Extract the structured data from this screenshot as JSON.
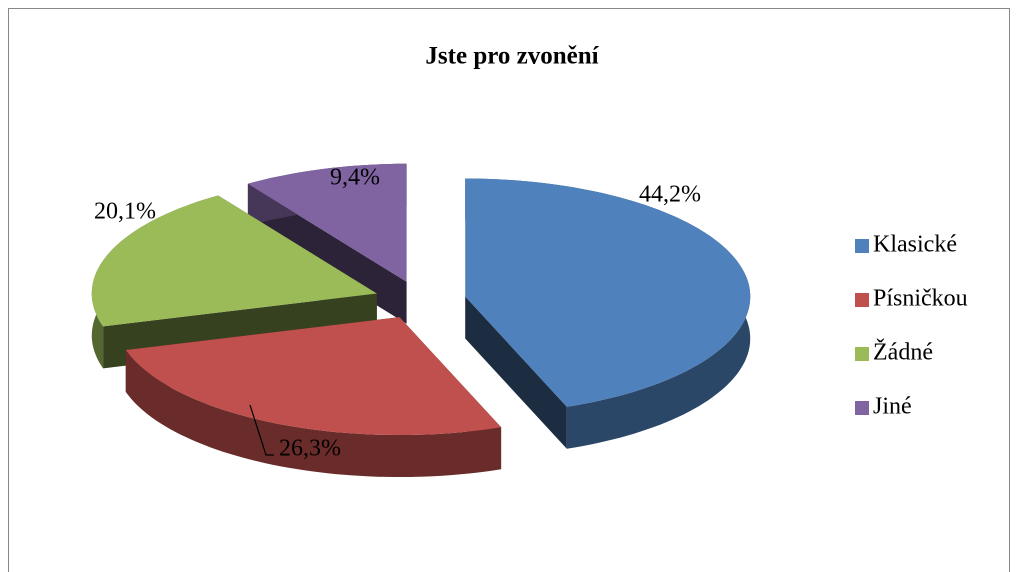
{
  "chart_data": {
    "type": "pie",
    "title": "Jste pro zvonění",
    "categories": [
      "Klasické",
      "Písničkou",
      "Žádné",
      "Jiné"
    ],
    "values": [
      44.2,
      26.3,
      20.1,
      9.4
    ],
    "value_labels": [
      "44,2%",
      "26,3%",
      "20,1%",
      "9,4%"
    ],
    "colors": [
      "#4f81bd",
      "#c0504d",
      "#9bbb59",
      "#8064a2"
    ],
    "legend": "right"
  }
}
